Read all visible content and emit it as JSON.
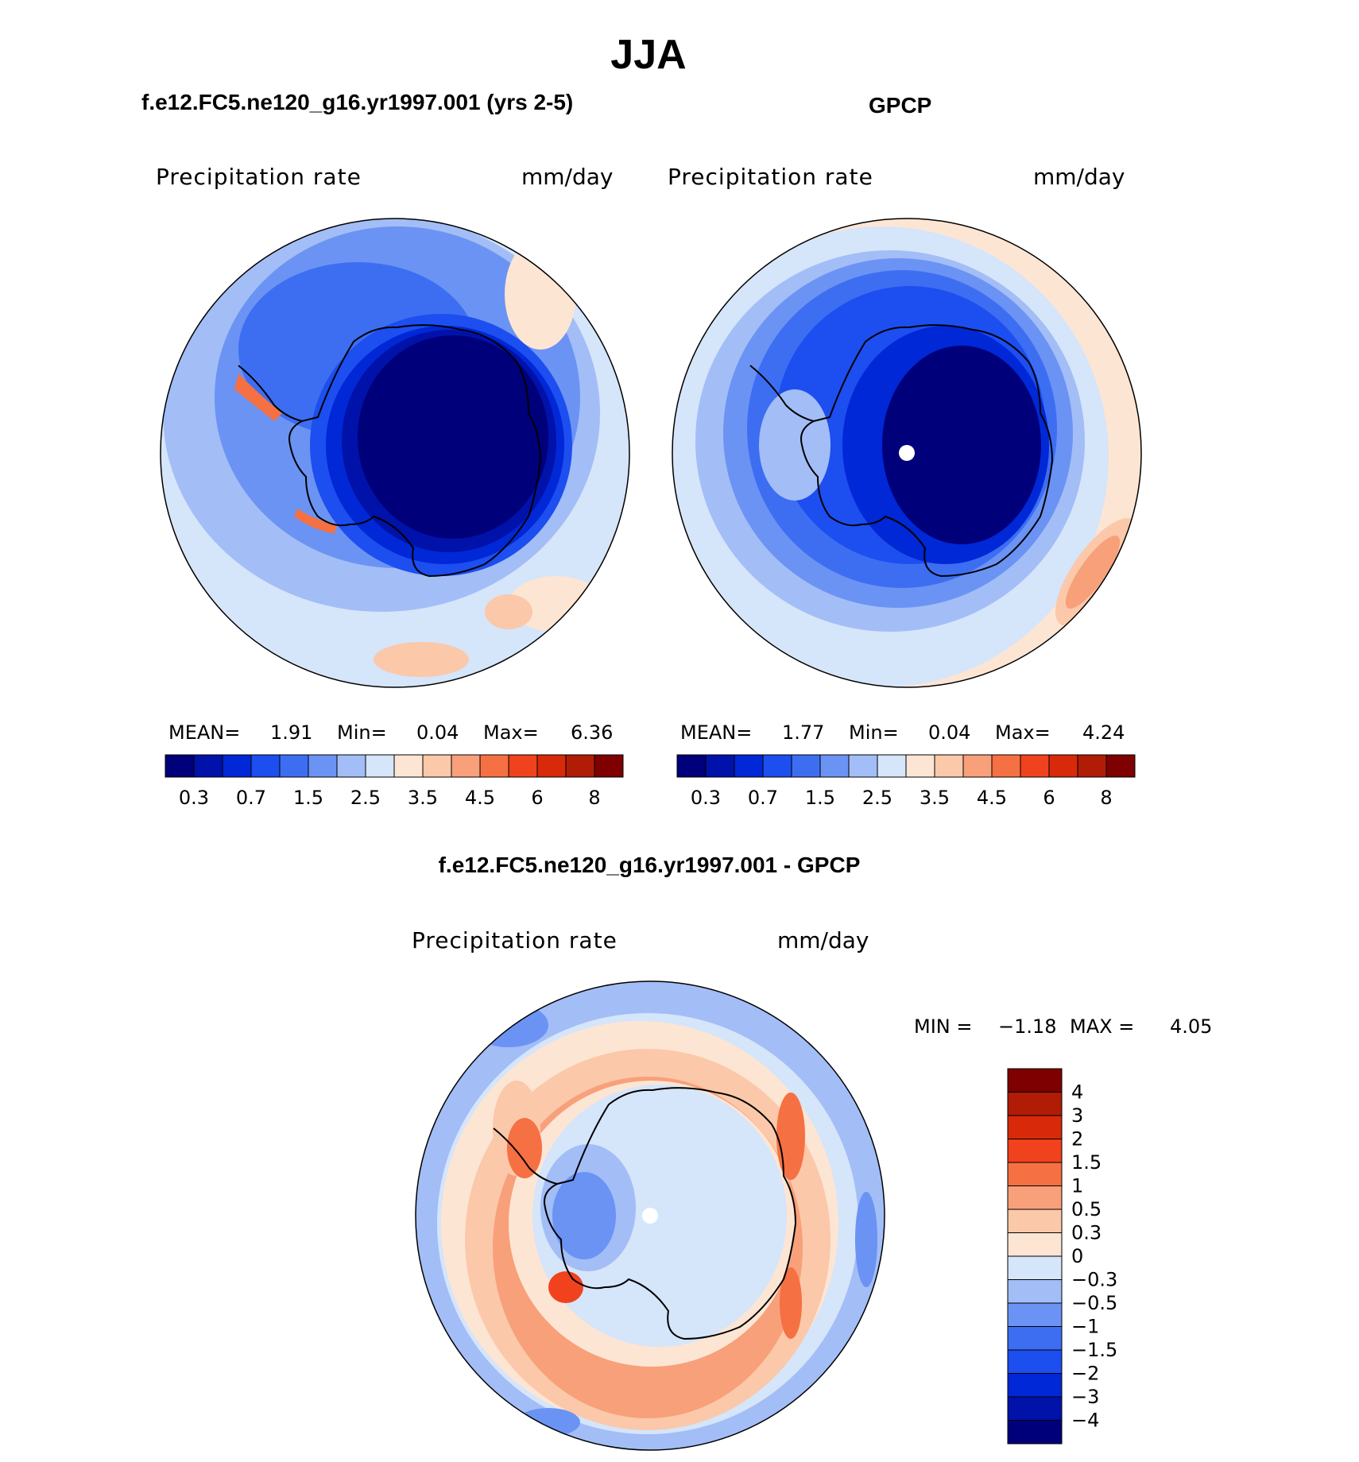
{
  "figure": {
    "season_title": "JJA"
  },
  "panels": {
    "model": {
      "case_title": "f.e12.FC5.ne120_g16.yr1997.001 (yrs 2-5)",
      "variable": "Precipitation rate",
      "units": "mm/day",
      "stats": {
        "mean_label": "MEAN=",
        "mean": "1.91",
        "min_label": "Min=",
        "min": "0.04",
        "max_label": "Max=",
        "max": "6.36"
      }
    },
    "obs": {
      "case_title": "GPCP",
      "variable": "Precipitation rate",
      "units": "mm/day",
      "stats": {
        "mean_label": "MEAN=",
        "mean": "1.77",
        "min_label": "Min=",
        "min": "0.04",
        "max_label": "Max=",
        "max": "4.24"
      }
    },
    "diff": {
      "case_title": "f.e12.FC5.ne120_g16.yr1997.001 - GPCP",
      "variable": "Precipitation rate",
      "units": "mm/day",
      "stats": {
        "min_label": "MIN =",
        "min": "−1.18",
        "max_label": "MAX =",
        "max": "4.05"
      }
    }
  },
  "colorbars": {
    "precip": {
      "colors": [
        "#00007a",
        "#0012aa",
        "#0028d6",
        "#1c4ef0",
        "#3d6ef2",
        "#6b93f4",
        "#a3bdf6",
        "#d5e5fa",
        "#fde5d4",
        "#fbc8aa",
        "#f8a07a",
        "#f57042",
        "#f0421c",
        "#d82a0a",
        "#b01c06",
        "#7e0000"
      ],
      "labels": [
        "0.3",
        "0.7",
        "1.5",
        "2.5",
        "3.5",
        "4.5",
        "6",
        "8"
      ]
    },
    "diff": {
      "colors": [
        "#00007a",
        "#0012aa",
        "#0028d6",
        "#1c4ef0",
        "#3d6ef2",
        "#6b93f4",
        "#a3bdf6",
        "#d5e5fa",
        "#fde5d4",
        "#fbc8aa",
        "#f8a07a",
        "#f57042",
        "#f0421c",
        "#d82a0a",
        "#b01c06",
        "#7e0000"
      ],
      "labels": [
        "4",
        "3",
        "2",
        "1.5",
        "1",
        "0.5",
        "0.3",
        "0",
        "−0.3",
        "−0.5",
        "−1",
        "−1.5",
        "−2",
        "−3",
        "−4"
      ]
    }
  }
}
